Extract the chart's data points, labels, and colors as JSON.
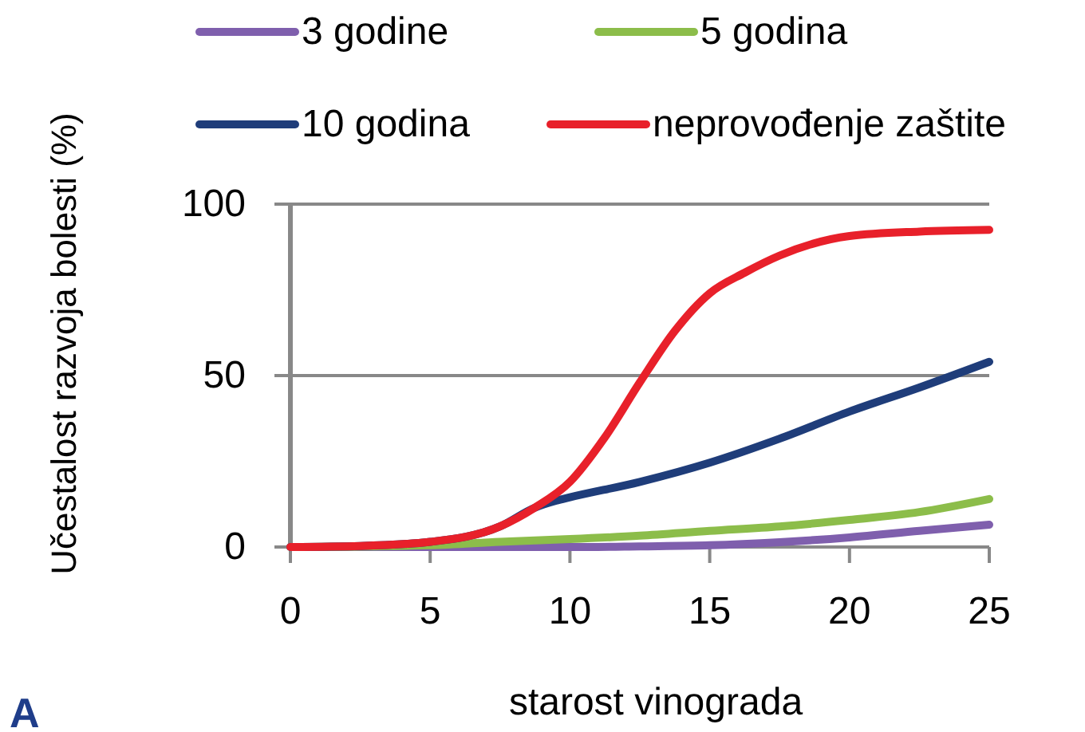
{
  "chart_data": {
    "type": "line",
    "xlabel": "starost vinograda",
    "ylabel": "Učestalost razvoja bolesti (%)",
    "xlim": [
      0,
      25
    ],
    "ylim": [
      0,
      100
    ],
    "xticks": [
      0,
      5,
      10,
      15,
      20,
      25
    ],
    "yticks": [
      0,
      50,
      100
    ],
    "grid": "y",
    "legend": "top",
    "line_style": "solid",
    "annotations": [
      "A"
    ],
    "series": [
      {
        "name": "3 godine",
        "color": "#7f5fad",
        "x": [
          0,
          5,
          10,
          12.5,
          15,
          17.5,
          20,
          22.5,
          25
        ],
        "values": [
          0,
          0,
          0,
          0.2,
          0.5,
          1.4,
          2.8,
          4.7,
          6.5
        ]
      },
      {
        "name": "5 godina",
        "color": "#8cbd4a",
        "x": [
          0,
          5,
          7.5,
          10,
          12.5,
          15,
          17.5,
          20,
          22.5,
          25
        ],
        "values": [
          0,
          0.5,
          1.5,
          2.3,
          3.3,
          4.7,
          6,
          7.9,
          10.2,
          14
        ]
      },
      {
        "name": "10 godina",
        "color": "#1f3d7a",
        "x": [
          0,
          2.5,
          5,
          7.5,
          8.75,
          9.5,
          10,
          12.5,
          15,
          17.5,
          20,
          22.5,
          25
        ],
        "values": [
          0,
          0.3,
          1.5,
          6,
          11.5,
          13.5,
          14.5,
          19,
          24.6,
          31.6,
          39.5,
          46.5,
          54
        ]
      },
      {
        "name": "neprovođenje zaštite",
        "color": "#e8202a",
        "x": [
          0,
          2.5,
          5,
          7.5,
          8.75,
          10,
          11.25,
          12.5,
          13.75,
          15,
          16.25,
          17.5,
          20,
          22.5,
          25
        ],
        "values": [
          0,
          0.3,
          1.5,
          6,
          11.5,
          19,
          32,
          48,
          63,
          74,
          80,
          85,
          90.7,
          92,
          92.5
        ]
      }
    ]
  }
}
